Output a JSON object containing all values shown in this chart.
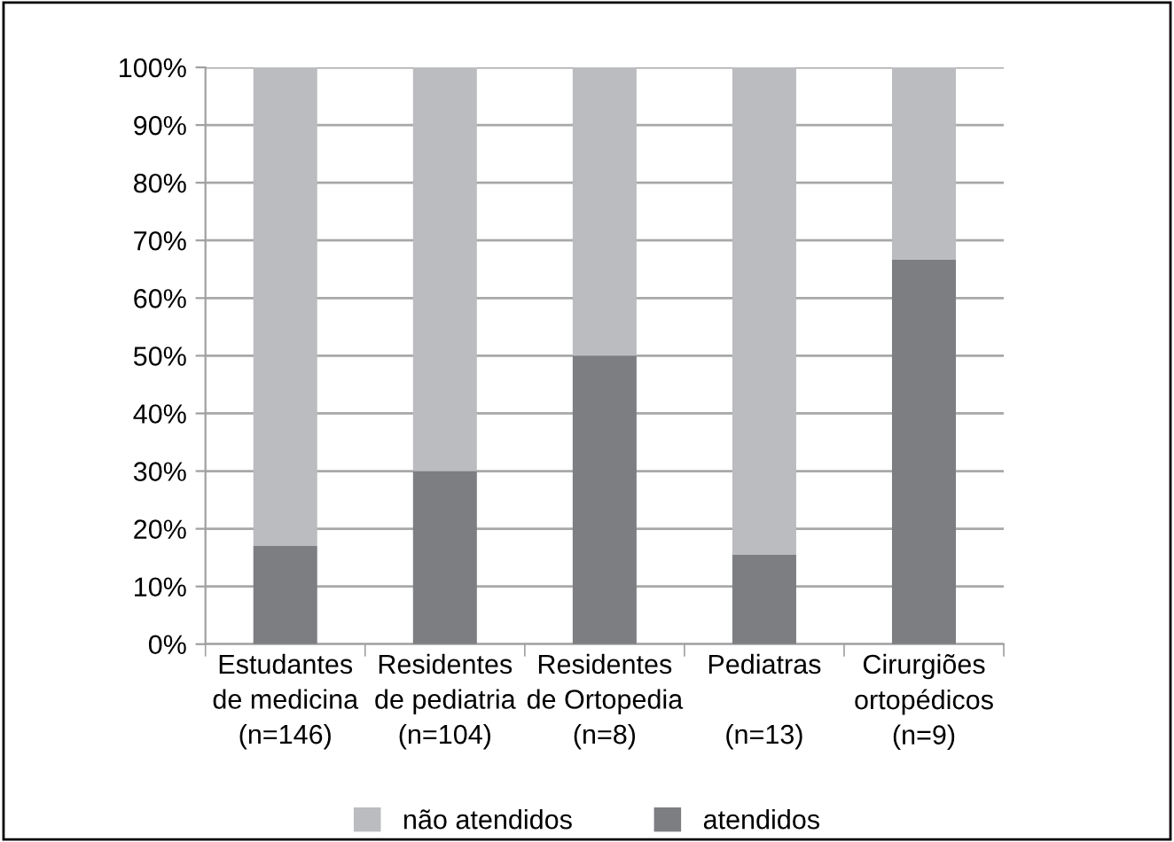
{
  "chart_data": {
    "type": "bar",
    "stacked": true,
    "categories": [
      "Estudantes\nde medicina\n(n=146)",
      "Residentes\nde pediatria\n(n=104)",
      "Residentes\nde Ortopedia\n(n=8)",
      "Pediatras\n\n(n=13)",
      "Cirurgiões\nortopédicos\n(n=9)"
    ],
    "series": [
      {
        "name": "atendidos",
        "color": "#7d7e82",
        "values": [
          17,
          30,
          50,
          15.5,
          66.7
        ]
      },
      {
        "name": "não atendidos",
        "color": "#bbbcbf",
        "values": [
          83,
          70,
          50,
          84.5,
          33.3
        ]
      }
    ],
    "ylim": [
      0,
      100
    ],
    "yticks": [
      {
        "value": 0,
        "label": "0%"
      },
      {
        "value": 10,
        "label": "10%"
      },
      {
        "value": 20,
        "label": "20%"
      },
      {
        "value": 30,
        "label": "30%"
      },
      {
        "value": 40,
        "label": "40%"
      },
      {
        "value": 50,
        "label": "50%"
      },
      {
        "value": 60,
        "label": "60%"
      },
      {
        "value": 70,
        "label": "70%"
      },
      {
        "value": 80,
        "label": "80%"
      },
      {
        "value": 90,
        "label": "90%"
      },
      {
        "value": 100,
        "label": "100%"
      }
    ],
    "grid": "y",
    "legend": "bottom"
  }
}
